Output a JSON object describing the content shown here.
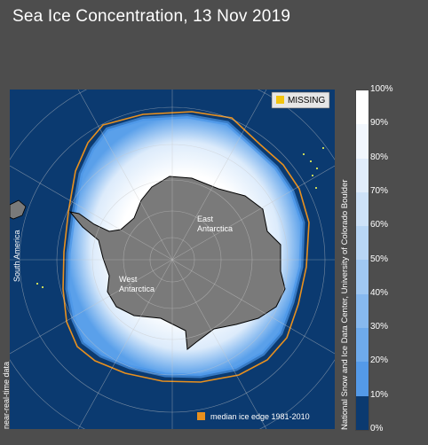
{
  "title": "Sea Ice Concentration, 13 Nov 2019",
  "legend": {
    "missing_label": "MISSING",
    "missing_color": "#f2c40f",
    "median_label": "median ice edge 1981-2010",
    "median_color": "#e8901e"
  },
  "map_labels": {
    "south_america": "South America",
    "east_antarctica": "East\nAntarctica",
    "west_antarctica": "West\nAntarctica",
    "near_real_time": "near-real-time data"
  },
  "credit": "National Snow and Ice Data Center, University of Colorado Boulder",
  "colorbar": {
    "ticks": [
      "100%",
      "90%",
      "80%",
      "70%",
      "60%",
      "50%",
      "40%",
      "30%",
      "20%",
      "10%",
      "0%"
    ],
    "colors": [
      "#ffffff",
      "#f2f7fd",
      "#e1edfb",
      "#cde2f8",
      "#b8d6f5",
      "#a0c8f2",
      "#87b9ef",
      "#6eaaeb",
      "#549ae8",
      "#3a8be4",
      "#0b3a70"
    ]
  },
  "colors": {
    "ocean": "#0b3a70",
    "land": "#7a7a7a",
    "ice_high": "#ffffff",
    "ice_low": "#4a96e8"
  }
}
